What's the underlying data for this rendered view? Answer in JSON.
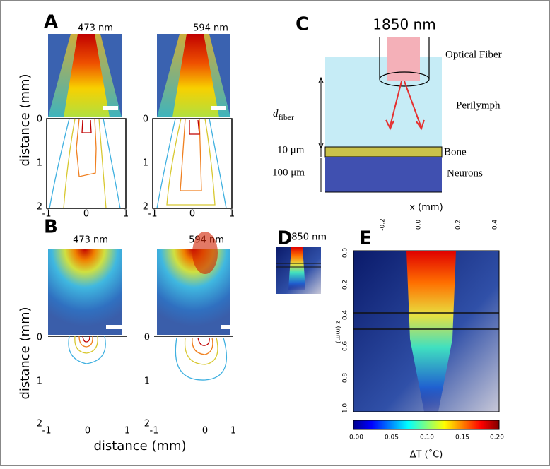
{
  "panels": {
    "A": {
      "label": "A",
      "titles": [
        "473 nm",
        "594 nm"
      ],
      "y_label": "distance (mm)",
      "yticks": [
        "0",
        "1",
        "2"
      ],
      "xticks": [
        "-1",
        "0",
        "1"
      ]
    },
    "B": {
      "label": "B",
      "titles": [
        "473 nm",
        "594 nm"
      ],
      "y_label": "distance (mm)",
      "yticks": [
        "0",
        "1",
        "2"
      ],
      "xticks": [
        "-1",
        "0",
        "1"
      ],
      "x_label": "distance (mm)"
    },
    "C": {
      "label": "C",
      "wavelength": "1850 nm",
      "d": "d",
      "d_sub": "fiber",
      "layers": [
        "Optical Fiber",
        "Perilymph",
        "Bone",
        "Neurons"
      ],
      "thickness": [
        "10 μm",
        "100 μm"
      ]
    },
    "D": {
      "label": "D",
      "title": "1850 nm"
    },
    "E": {
      "label": "E",
      "x_label": "x (mm)",
      "xticks": [
        "-0.2",
        "0.0",
        "0.2",
        "0.4"
      ],
      "y_label": "z (mm)",
      "yticks": [
        "0.0",
        "0.2",
        "0.4",
        "0.6",
        "0.8",
        "1.0"
      ],
      "colorbar_ticks": [
        "0.00",
        "0.05",
        "0.10",
        "0.15",
        "0.20"
      ],
      "colorbar_label": "ΔT (˚C)"
    }
  }
}
